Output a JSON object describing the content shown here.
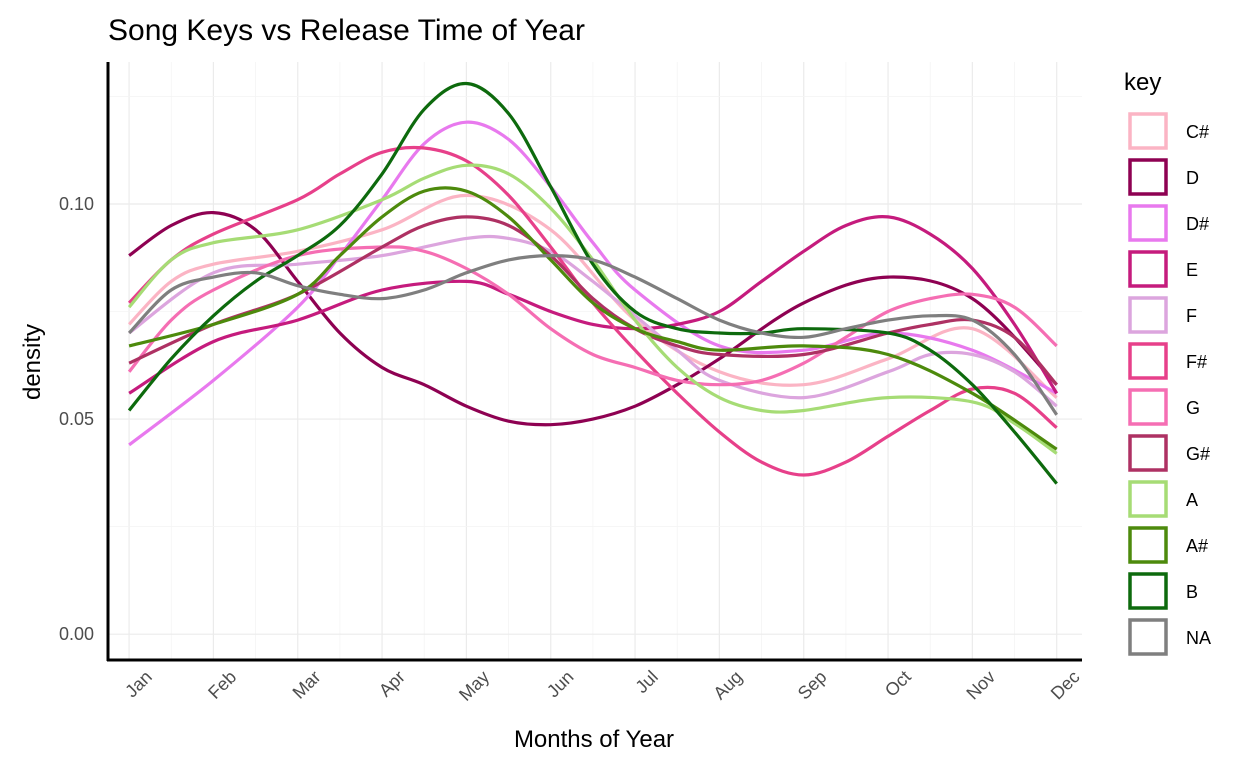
{
  "chart_data": {
    "type": "line",
    "title": "Song Keys vs Release Time of Year",
    "xlabel": "Months of Year",
    "ylabel": "density",
    "xlim": [
      0.75,
      12.3
    ],
    "ylim": [
      -0.006,
      0.133
    ],
    "grid": true,
    "categories": [
      "Jan",
      "Feb",
      "Mar",
      "Apr",
      "May",
      "Jun",
      "Jul",
      "Aug",
      "Sep",
      "Oct",
      "Nov",
      "Dec"
    ],
    "yticks": [
      {
        "value": 0,
        "label": "0.00"
      },
      {
        "value": 0.05,
        "label": "0.05"
      },
      {
        "value": 0.1,
        "label": "0.10"
      }
    ],
    "legend": {
      "title": "key",
      "position": "right"
    },
    "series": [
      {
        "name": "C#",
        "color": "#FBB4C4",
        "x": [
          1,
          1.5,
          2,
          3,
          4,
          5,
          6,
          7,
          8,
          9,
          10,
          11,
          12
        ],
        "values": [
          0.072,
          0.082,
          0.086,
          0.089,
          0.094,
          0.102,
          0.094,
          0.073,
          0.061,
          0.058,
          0.064,
          0.071,
          0.055
        ]
      },
      {
        "name": "D",
        "color": "#8E0152",
        "x": [
          1,
          1.5,
          2,
          2.5,
          3,
          3.5,
          4,
          4.5,
          5,
          5.5,
          6,
          6.5,
          7,
          7.5,
          8,
          9,
          10,
          11,
          12
        ],
        "values": [
          0.088,
          0.095,
          0.098,
          0.094,
          0.082,
          0.07,
          0.062,
          0.058,
          0.053,
          0.0495,
          0.0487,
          0.05,
          0.053,
          0.058,
          0.064,
          0.077,
          0.083,
          0.078,
          0.058
        ]
      },
      {
        "name": "D#",
        "color": "#E879EE",
        "x": [
          1,
          2,
          3,
          3.5,
          4,
          4.5,
          5,
          5.5,
          6,
          6.5,
          7,
          8,
          9,
          10,
          11,
          12
        ],
        "values": [
          0.044,
          0.059,
          0.076,
          0.088,
          0.101,
          0.114,
          0.119,
          0.115,
          0.104,
          0.091,
          0.08,
          0.067,
          0.066,
          0.07,
          0.066,
          0.056
        ]
      },
      {
        "name": "E",
        "color": "#C51B7D",
        "x": [
          1,
          2,
          3,
          4,
          5,
          5.5,
          6,
          6.5,
          7,
          7.5,
          8,
          8.5,
          9,
          9.5,
          10,
          10.5,
          11,
          11.5,
          12
        ],
        "values": [
          0.056,
          0.068,
          0.073,
          0.08,
          0.082,
          0.079,
          0.075,
          0.072,
          0.071,
          0.072,
          0.075,
          0.082,
          0.089,
          0.095,
          0.097,
          0.093,
          0.085,
          0.072,
          0.056
        ]
      },
      {
        "name": "F",
        "color": "#DCA5DE",
        "x": [
          1,
          2,
          3,
          4,
          5,
          5.5,
          6,
          6.5,
          7,
          7.5,
          8,
          9,
          10,
          10.5,
          11,
          11.5,
          12
        ],
        "values": [
          0.07,
          0.084,
          0.086,
          0.088,
          0.092,
          0.092,
          0.089,
          0.082,
          0.074,
          0.066,
          0.059,
          0.055,
          0.061,
          0.065,
          0.065,
          0.061,
          0.053
        ]
      },
      {
        "name": "F#",
        "color": "#E7408A",
        "x": [
          1,
          1.5,
          2,
          3,
          3.5,
          4,
          4.5,
          5,
          5.5,
          6,
          6.5,
          7,
          7.5,
          8,
          8.5,
          9,
          9.5,
          10,
          10.5,
          11,
          11.5,
          12
        ],
        "values": [
          0.077,
          0.087,
          0.093,
          0.101,
          0.107,
          0.112,
          0.113,
          0.11,
          0.102,
          0.09,
          0.077,
          0.066,
          0.056,
          0.047,
          0.04,
          0.037,
          0.04,
          0.046,
          0.052,
          0.057,
          0.056,
          0.048
        ]
      },
      {
        "name": "G",
        "color": "#F56EB3",
        "x": [
          1,
          1.5,
          2,
          3,
          4,
          4.5,
          5,
          5.5,
          6,
          6.5,
          7,
          7.5,
          8,
          8.5,
          9,
          9.5,
          10,
          10.5,
          11,
          11.5,
          12
        ],
        "values": [
          0.061,
          0.073,
          0.08,
          0.088,
          0.09,
          0.089,
          0.085,
          0.079,
          0.071,
          0.065,
          0.062,
          0.059,
          0.058,
          0.059,
          0.063,
          0.069,
          0.075,
          0.078,
          0.079,
          0.076,
          0.067
        ]
      },
      {
        "name": "G#",
        "color": "#AE3163",
        "x": [
          1,
          2,
          3,
          4,
          4.5,
          5,
          5.5,
          6,
          6.5,
          7,
          7.5,
          8,
          9,
          10,
          10.5,
          11,
          11.5,
          12
        ],
        "values": [
          0.063,
          0.072,
          0.079,
          0.09,
          0.095,
          0.097,
          0.095,
          0.088,
          0.078,
          0.071,
          0.067,
          0.065,
          0.065,
          0.07,
          0.072,
          0.073,
          0.069,
          0.058
        ]
      },
      {
        "name": "A",
        "color": "#A6DC75",
        "x": [
          1,
          1.5,
          2,
          3,
          4,
          4.5,
          5,
          5.5,
          6,
          6.5,
          7,
          7.5,
          8,
          8.5,
          9,
          10,
          11,
          11.5,
          12
        ],
        "values": [
          0.076,
          0.087,
          0.091,
          0.094,
          0.101,
          0.106,
          0.109,
          0.107,
          0.099,
          0.087,
          0.073,
          0.062,
          0.055,
          0.052,
          0.052,
          0.055,
          0.054,
          0.049,
          0.042
        ]
      },
      {
        "name": "A#",
        "color": "#4D8A0C",
        "x": [
          1,
          2,
          3,
          3.5,
          4,
          4.5,
          5,
          5.5,
          6,
          6.5,
          7,
          7.5,
          8,
          9,
          10,
          11,
          12
        ],
        "values": [
          0.067,
          0.072,
          0.079,
          0.088,
          0.097,
          0.103,
          0.103,
          0.097,
          0.087,
          0.077,
          0.071,
          0.068,
          0.066,
          0.067,
          0.065,
          0.056,
          0.043
        ]
      },
      {
        "name": "B",
        "color": "#0D6A0D",
        "x": [
          1,
          1.5,
          2,
          2.5,
          3,
          3.5,
          4,
          4.5,
          5,
          5.5,
          6,
          6.5,
          7,
          7.5,
          8,
          8.5,
          9,
          10,
          10.5,
          11,
          11.5,
          12
        ],
        "values": [
          0.052,
          0.064,
          0.074,
          0.082,
          0.088,
          0.095,
          0.107,
          0.122,
          0.128,
          0.121,
          0.104,
          0.086,
          0.075,
          0.071,
          0.07,
          0.07,
          0.071,
          0.07,
          0.066,
          0.058,
          0.047,
          0.035
        ]
      },
      {
        "name": "NA",
        "color": "#7F7F7F",
        "x": [
          1,
          1.5,
          2,
          2.5,
          3,
          3.5,
          4,
          4.5,
          5,
          5.5,
          6,
          6.5,
          7,
          7.5,
          8,
          8.5,
          9,
          9.5,
          10,
          10.5,
          11,
          11.5,
          12
        ],
        "values": [
          0.07,
          0.08,
          0.083,
          0.084,
          0.081,
          0.079,
          0.078,
          0.08,
          0.084,
          0.087,
          0.088,
          0.087,
          0.083,
          0.078,
          0.073,
          0.07,
          0.069,
          0.071,
          0.073,
          0.074,
          0.073,
          0.065,
          0.051
        ]
      }
    ]
  }
}
